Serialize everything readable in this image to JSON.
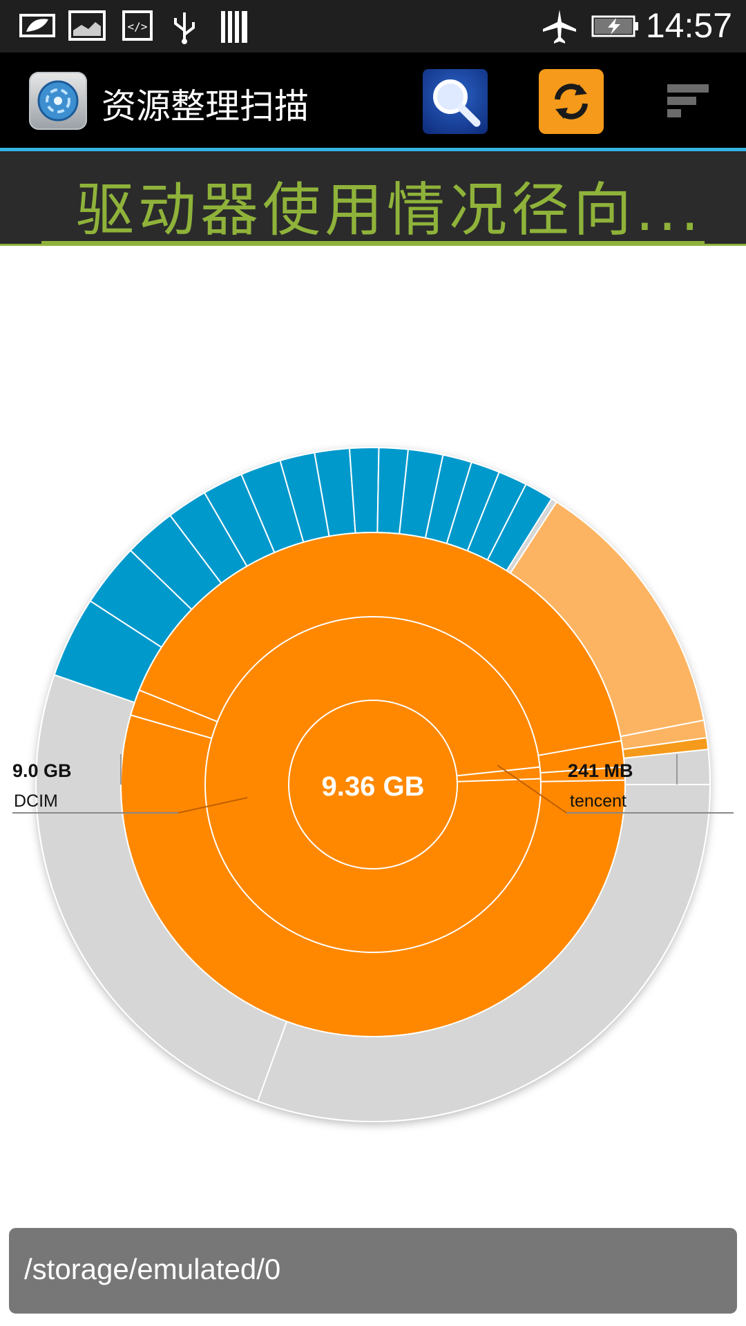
{
  "status_bar": {
    "time": "14:57",
    "icons": [
      "battery-leaf-icon",
      "image-icon",
      "code-icon",
      "usb-icon",
      "barcode-icon",
      "airplane-icon",
      "battery-charging-icon"
    ]
  },
  "action_bar": {
    "title": "资源整理扫描",
    "icons": [
      "app-scan-icon",
      "search-icon",
      "refresh-icon",
      "menu-sort-icon"
    ]
  },
  "banner": {
    "title": "驱动器使用情况径向..."
  },
  "chart_data": {
    "type": "sunburst",
    "center_label": "9.36 GB",
    "callouts": [
      {
        "size": "9.0 GB",
        "name": "DCIM"
      },
      {
        "size": "241 MB",
        "name": "tencent"
      }
    ],
    "colors": {
      "primary": "#ff8800",
      "light_orange": "#fdb462",
      "blue": "#0099cc",
      "free": "#d6d6d6"
    }
  },
  "path_bar": {
    "path": "/storage/emulated/0"
  }
}
